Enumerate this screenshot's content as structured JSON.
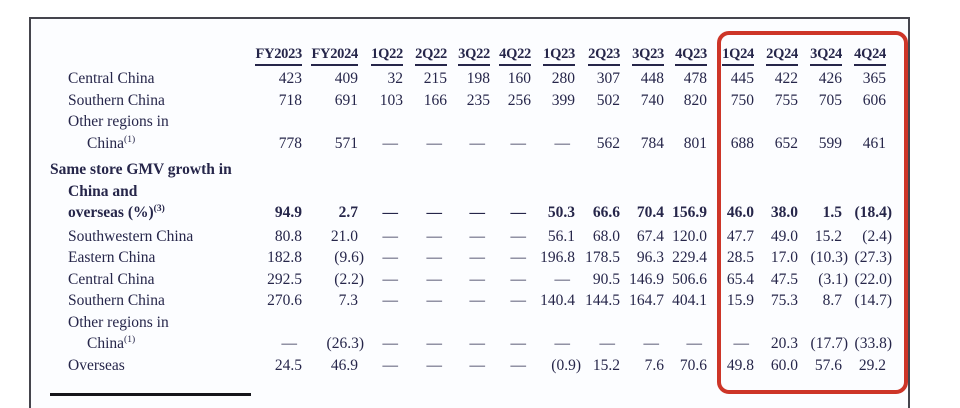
{
  "table": {
    "columns": [
      "FY2023",
      "FY2024",
      "1Q22",
      "2Q22",
      "3Q22",
      "4Q22",
      "1Q23",
      "2Q23",
      "3Q23",
      "4Q23",
      "1Q24",
      "2Q24",
      "3Q24",
      "4Q24"
    ],
    "rows": [
      {
        "label_lines": [
          {
            "text": "Central China",
            "indent": 1
          }
        ],
        "bold": false,
        "section": false,
        "values": [
          "423",
          "409",
          "32",
          "215",
          "198",
          "160",
          "280",
          "307",
          "448",
          "478",
          "445",
          "422",
          "426",
          "365"
        ]
      },
      {
        "label_lines": [
          {
            "text": "Southern China",
            "indent": 1
          }
        ],
        "bold": false,
        "section": false,
        "values": [
          "718",
          "691",
          "103",
          "166",
          "235",
          "256",
          "399",
          "502",
          "740",
          "820",
          "750",
          "755",
          "705",
          "606"
        ]
      },
      {
        "label_lines": [
          {
            "text": "Other regions in",
            "indent": 1
          },
          {
            "text": "China",
            "sup": "(1)",
            "indent": 2
          }
        ],
        "bold": false,
        "section": false,
        "values": [
          "778",
          "571",
          "—",
          "—",
          "—",
          "—",
          "—",
          "562",
          "784",
          "801",
          "688",
          "652",
          "599",
          "461"
        ]
      },
      {
        "label_lines": [
          {
            "text": "Same store GMV growth in",
            "indent": 0
          },
          {
            "text": "China and",
            "indent": 1
          },
          {
            "text": "overseas (%)",
            "sup": "(3)",
            "indent": 1
          }
        ],
        "bold": true,
        "section": true,
        "values": [
          "94.9",
          "2.7",
          "—",
          "—",
          "—",
          "—",
          "50.3",
          "66.6",
          "70.4",
          "156.9",
          "46.0",
          "38.0",
          "1.5",
          "(18.4)"
        ]
      },
      {
        "label_lines": [
          {
            "text": "Southwestern China",
            "indent": 1
          }
        ],
        "bold": false,
        "section": false,
        "values": [
          "80.8",
          "21.0",
          "—",
          "—",
          "—",
          "—",
          "56.1",
          "68.0",
          "67.4",
          "120.0",
          "47.7",
          "49.0",
          "15.2",
          "(2.4)"
        ]
      },
      {
        "label_lines": [
          {
            "text": "Eastern China",
            "indent": 1
          }
        ],
        "bold": false,
        "section": false,
        "values": [
          "182.8",
          "(9.6)",
          "—",
          "—",
          "—",
          "—",
          "196.8",
          "178.5",
          "96.3",
          "229.4",
          "28.5",
          "17.0",
          "(10.3)",
          "(27.3)"
        ]
      },
      {
        "label_lines": [
          {
            "text": "Central China",
            "indent": 1
          }
        ],
        "bold": false,
        "section": false,
        "values": [
          "292.5",
          "(2.2)",
          "—",
          "—",
          "—",
          "—",
          "—",
          "90.5",
          "146.9",
          "506.6",
          "65.4",
          "47.5",
          "(3.1)",
          "(22.0)"
        ]
      },
      {
        "label_lines": [
          {
            "text": "Southern China",
            "indent": 1
          }
        ],
        "bold": false,
        "section": false,
        "values": [
          "270.6",
          "7.3",
          "—",
          "—",
          "—",
          "—",
          "140.4",
          "144.5",
          "164.7",
          "404.1",
          "15.9",
          "75.3",
          "8.7",
          "(14.7)"
        ]
      },
      {
        "label_lines": [
          {
            "text": "Other regions in",
            "indent": 1
          },
          {
            "text": "China",
            "sup": "(1)",
            "indent": 2
          }
        ],
        "bold": false,
        "section": false,
        "values": [
          "—",
          "(26.3)",
          "—",
          "—",
          "—",
          "—",
          "—",
          "—",
          "—",
          "—",
          "—",
          "20.3",
          "(17.7)",
          "(33.8)"
        ]
      },
      {
        "label_lines": [
          {
            "text": "Overseas",
            "indent": 1
          }
        ],
        "bold": false,
        "section": false,
        "values": [
          "24.5",
          "46.9",
          "—",
          "—",
          "—",
          "—",
          "(0.9)",
          "15.2",
          "7.6",
          "70.6",
          "49.8",
          "60.0",
          "57.6",
          "29.2"
        ]
      }
    ]
  },
  "highlight": {
    "highlighted_columns": [
      "1Q24",
      "2Q24",
      "3Q24",
      "4Q24"
    ],
    "color": "#cd3528"
  },
  "colors": {
    "text": "#26264a",
    "frame_border": "#45454d",
    "background": "#fcfdff",
    "footnote_rule": "#15151a"
  }
}
